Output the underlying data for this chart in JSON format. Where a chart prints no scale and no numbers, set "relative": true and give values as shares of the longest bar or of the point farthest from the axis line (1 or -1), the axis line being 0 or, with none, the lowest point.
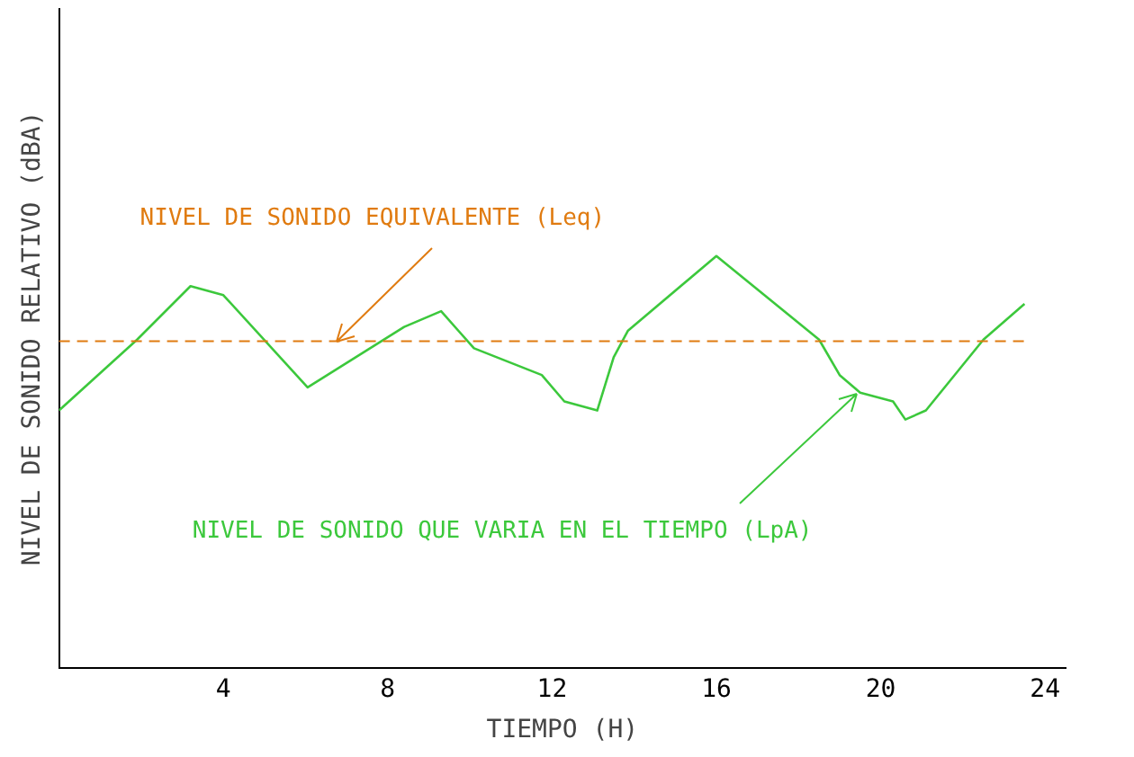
{
  "chart_data": {
    "type": "line",
    "relative": true,
    "xlabel": "TIEMPO (H)",
    "ylabel": "NIVEL DE SONIDO RELATIVO (dBA)",
    "xlim": [
      0,
      24.5
    ],
    "xticks": [
      4,
      8,
      12,
      16,
      20,
      24
    ],
    "grid": false,
    "legend": false,
    "marker": "none",
    "line_style": "solid",
    "series": [
      {
        "color": "#3cc83c",
        "x": [
          0,
          1.9,
          3.2,
          4,
          6.05,
          8.4,
          9.3,
          10.1,
          11.75,
          12.3,
          13.1,
          13.5,
          13.85,
          16,
          18.5,
          19,
          19.5,
          20.3,
          20.6,
          21.1,
          22.5,
          23.5
        ],
        "values": [
          0.625,
          0.797,
          0.927,
          0.905,
          0.681,
          0.828,
          0.866,
          0.776,
          0.711,
          0.647,
          0.625,
          0.754,
          0.819,
          1,
          0.797,
          0.711,
          0.668,
          0.647,
          0.603,
          0.625,
          0.797,
          0.884
        ]
      }
    ],
    "ref_lines": [
      {
        "axis": "y",
        "value": 0.793,
        "label": "NIVEL DE SONIDO EQUIVALENTE (Leq)",
        "color": "#e07b10",
        "line_style": "dashed"
      }
    ],
    "annotations": [
      {
        "text": "NIVEL DE SONIDO QUE VARIA EN EL TIEMPO (LpA)",
        "x": 19.5,
        "y": 0.668
      }
    ]
  }
}
